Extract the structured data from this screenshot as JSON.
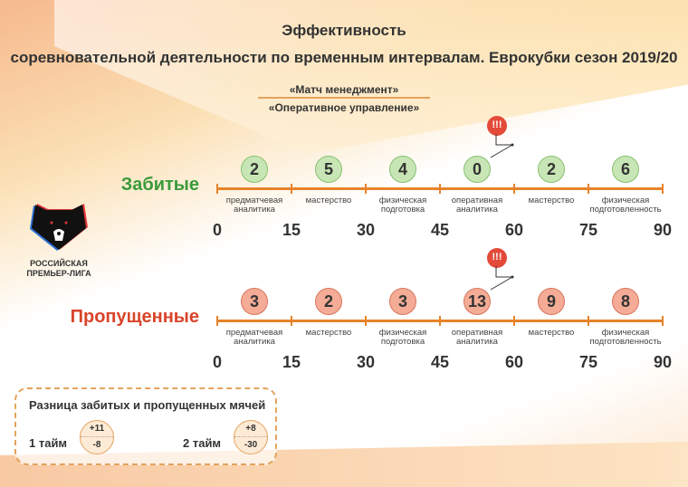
{
  "title": "Эффективность",
  "subtitle": "соревновательной деятельности по временным интервалам. Еврокубки сезон 2019/20",
  "section1": "«Матч менеджмент»",
  "section2": "«Оперативное управление»",
  "logo": {
    "line1": "РОССИЙСКАЯ",
    "line2": "ПРЕМЬЕР-ЛИГА"
  },
  "alert_label": "!!!",
  "ticks": [
    "0",
    "15",
    "30",
    "45",
    "60",
    "75",
    "90"
  ],
  "segments": [
    [
      "предматчевая",
      "аналитика"
    ],
    [
      "мастерство",
      ""
    ],
    [
      "физическая",
      "подготовка"
    ],
    [
      "оперативная",
      "аналитика"
    ],
    [
      "мастерство",
      ""
    ],
    [
      "физическая",
      "подготовленность"
    ]
  ],
  "scored": {
    "label": "Забитые",
    "values": [
      "2",
      "5",
      "4",
      "0",
      "2",
      "6"
    ],
    "color": "#3a9a3a"
  },
  "conceded": {
    "label": "Пропущенные",
    "values": [
      "3",
      "2",
      "3",
      "13",
      "9",
      "8"
    ],
    "color": "#d9442a"
  },
  "difference": {
    "title": "Разница забитых и пропущенных мячей",
    "halves": [
      {
        "label": "1 тайм",
        "plus": "+11",
        "minus": "-8"
      },
      {
        "label": "2 тайм",
        "plus": "+8",
        "minus": "-30"
      }
    ]
  }
}
